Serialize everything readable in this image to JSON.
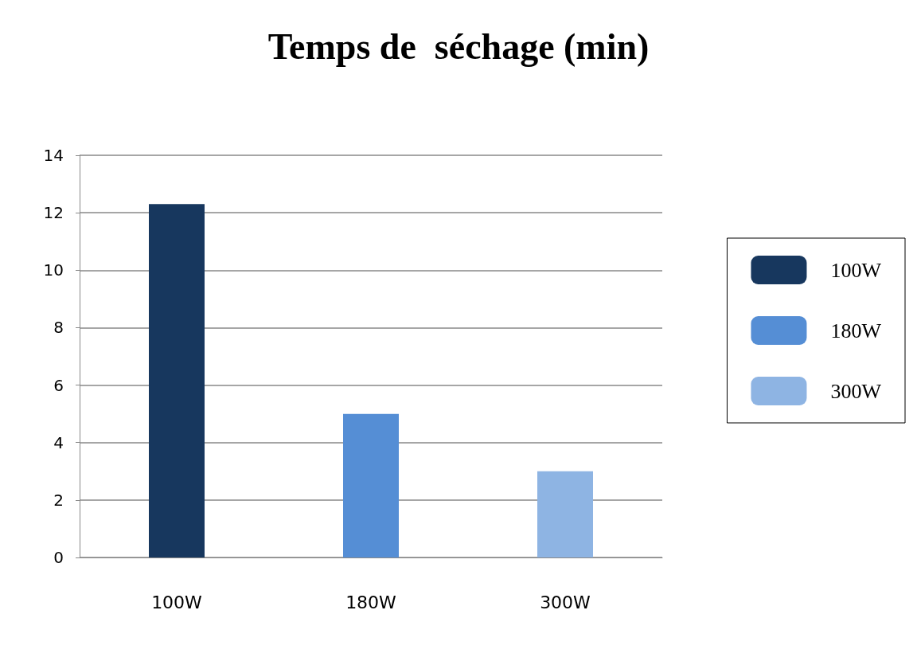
{
  "chart_data": {
    "type": "bar",
    "title": "Temps de  séchage (min)",
    "categories": [
      "100W",
      "180W",
      "300W"
    ],
    "series": [
      {
        "name": "100W",
        "color": "#17375e",
        "values": [
          12.3,
          null,
          null
        ]
      },
      {
        "name": "180W",
        "color": "#558ed5",
        "values": [
          null,
          5,
          null
        ]
      },
      {
        "name": "300W",
        "color": "#8eb4e3",
        "values": [
          null,
          null,
          3
        ]
      }
    ],
    "ylim": [
      0,
      14
    ],
    "yticks": [
      0,
      2,
      4,
      6,
      8,
      10,
      12,
      14
    ],
    "grid": "y",
    "legend": "right"
  }
}
